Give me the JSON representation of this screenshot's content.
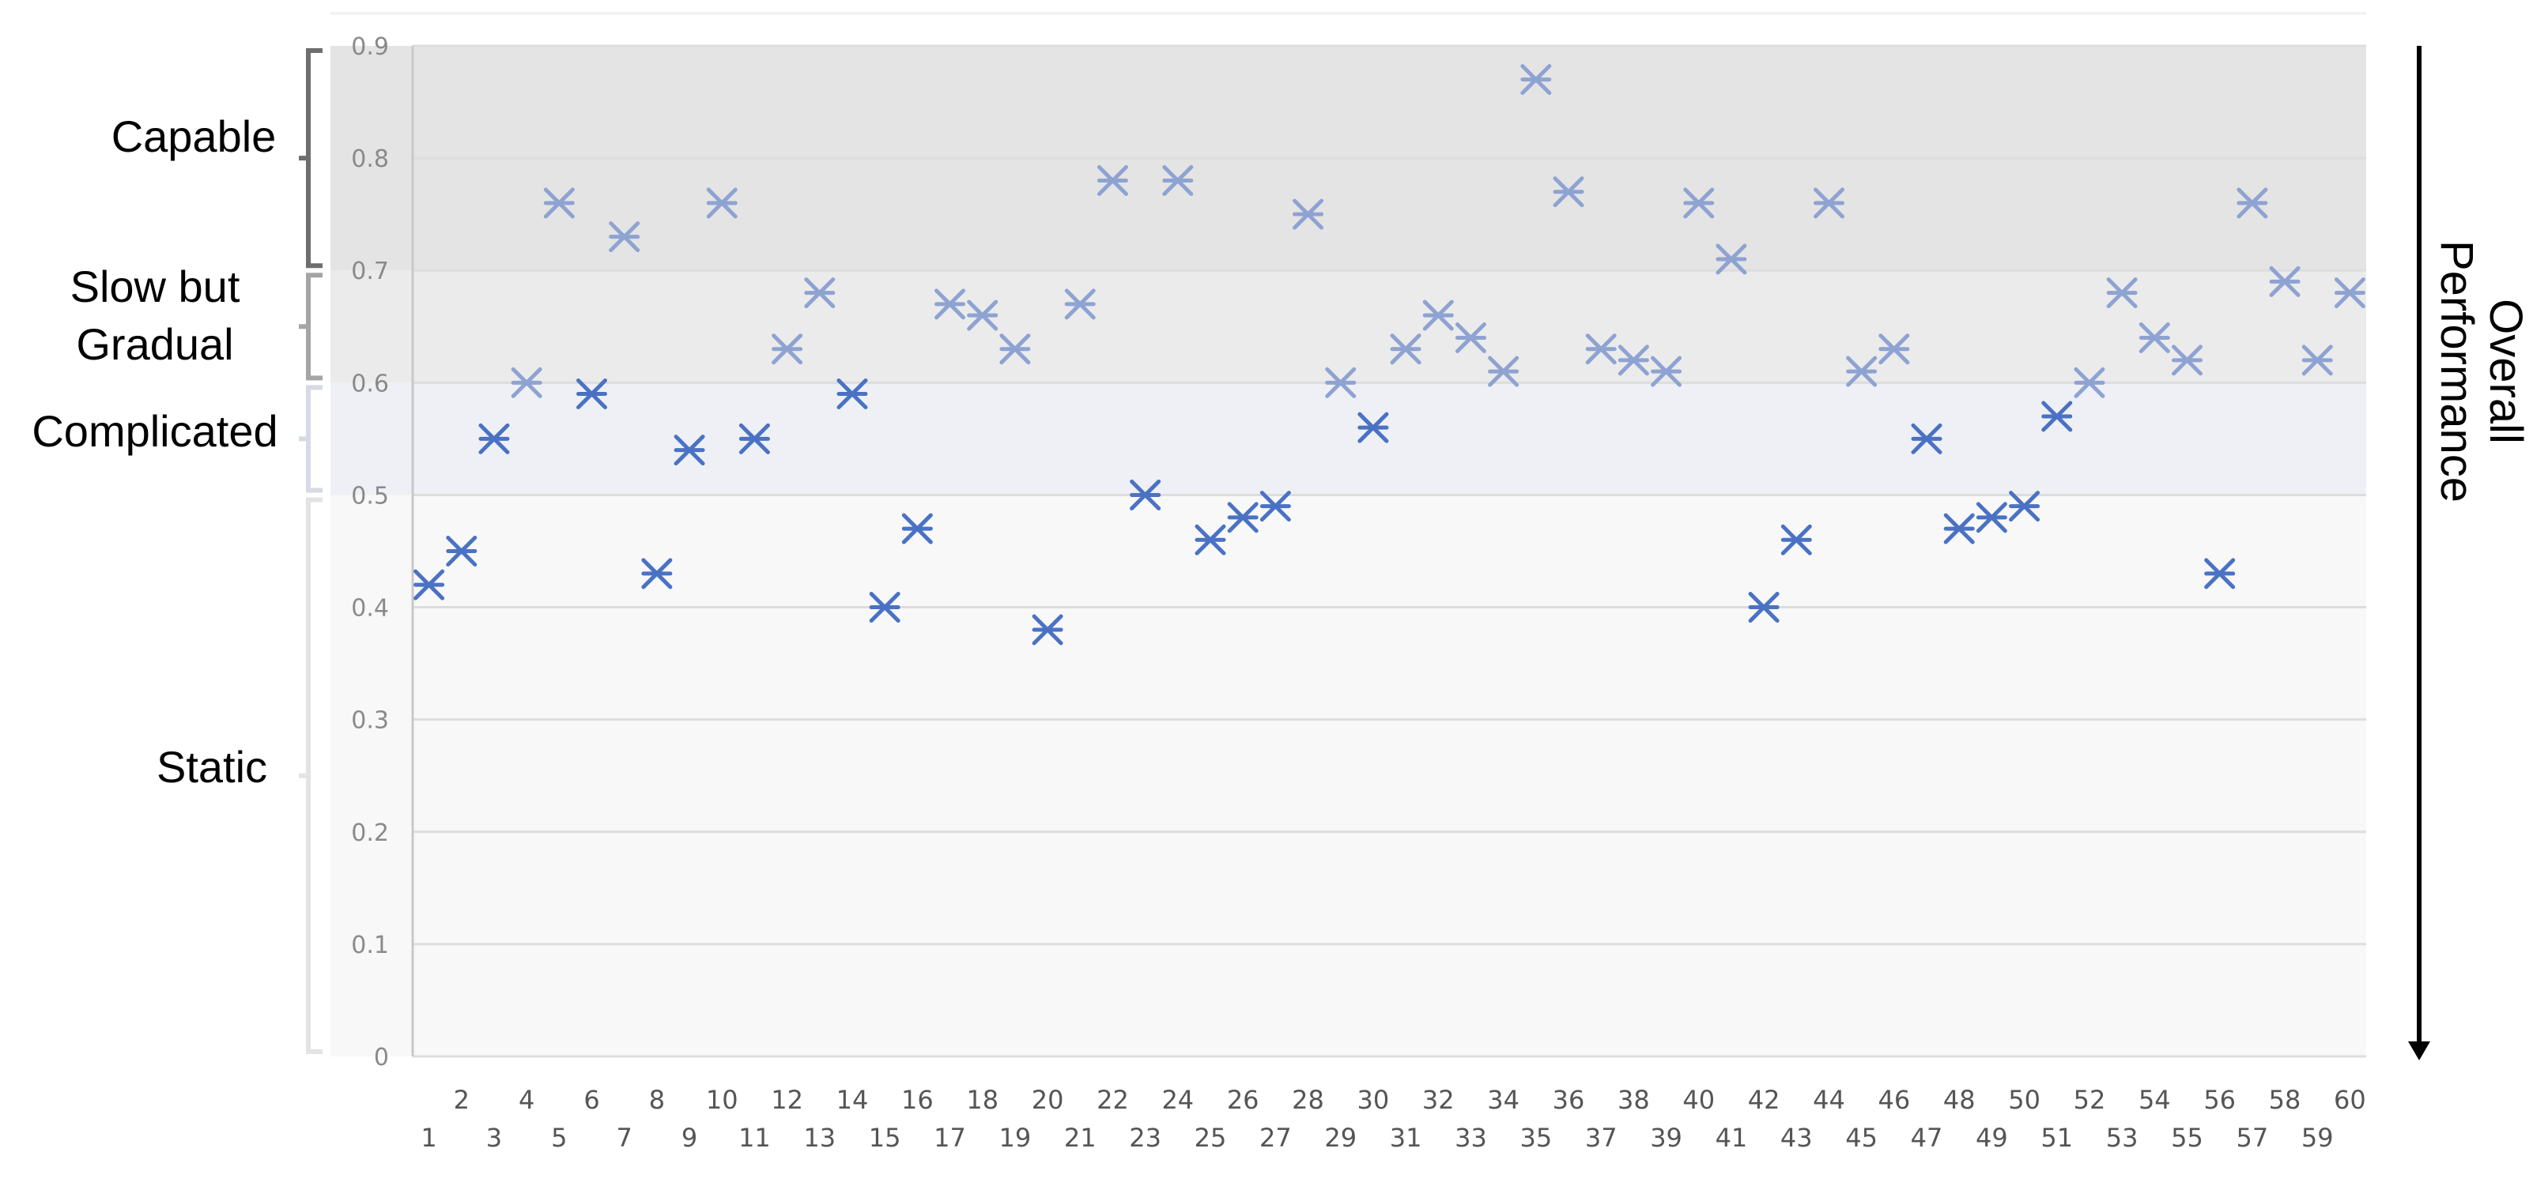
{
  "chart_data": {
    "type": "scatter",
    "title": "",
    "xlabel": "",
    "ylabel": "Overall Performance",
    "x": [
      1,
      2,
      3,
      4,
      5,
      6,
      7,
      8,
      9,
      10,
      11,
      12,
      13,
      14,
      15,
      16,
      17,
      18,
      19,
      20,
      21,
      22,
      23,
      24,
      25,
      26,
      27,
      28,
      29,
      30,
      31,
      32,
      33,
      34,
      35,
      36,
      37,
      38,
      39,
      40,
      41,
      42,
      43,
      44,
      45,
      46,
      47,
      48,
      49,
      50,
      51,
      52,
      53,
      54,
      55,
      56,
      57,
      58,
      59,
      60
    ],
    "values": [
      0.42,
      0.45,
      0.55,
      0.6,
      0.76,
      0.59,
      0.73,
      0.43,
      0.54,
      0.76,
      0.55,
      0.63,
      0.68,
      0.59,
      0.4,
      0.47,
      0.67,
      0.66,
      0.63,
      0.38,
      0.67,
      0.78,
      0.5,
      0.78,
      0.46,
      0.48,
      0.49,
      0.75,
      0.6,
      0.56,
      0.63,
      0.66,
      0.64,
      0.61,
      0.87,
      0.77,
      0.63,
      0.62,
      0.61,
      0.76,
      0.71,
      0.4,
      0.46,
      0.76,
      0.61,
      0.63,
      0.55,
      0.47,
      0.48,
      0.49,
      0.57,
      0.6,
      0.68,
      0.64,
      0.62,
      0.43,
      0.76,
      0.69,
      0.62,
      0.68
    ],
    "ylim": [
      0,
      0.9
    ],
    "yticks": [
      "0",
      "0.1",
      "0.2",
      "0.3",
      "0.4",
      "0.5",
      "0.6",
      "0.7",
      "0.8",
      "0.9"
    ],
    "marker": "x-star",
    "grid": true,
    "bands": [
      {
        "label": "Capable",
        "range": [
          0.7,
          0.9
        ],
        "color": "#e4e4e4"
      },
      {
        "label": "Slow but Gradual",
        "range": [
          0.6,
          0.7
        ],
        "color": "#ebebeb"
      },
      {
        "label": "Complicated",
        "range": [
          0.5,
          0.6
        ],
        "color": "#eef0f5"
      },
      {
        "label": "Static",
        "range": [
          0,
          0.5
        ],
        "color": "#f8f8f8"
      }
    ],
    "colors": {
      "marker_low": "#4a72c4",
      "marker_high": "#8ea3d2",
      "grid": "#dddddd",
      "axis": "#c8c8c8"
    }
  }
}
